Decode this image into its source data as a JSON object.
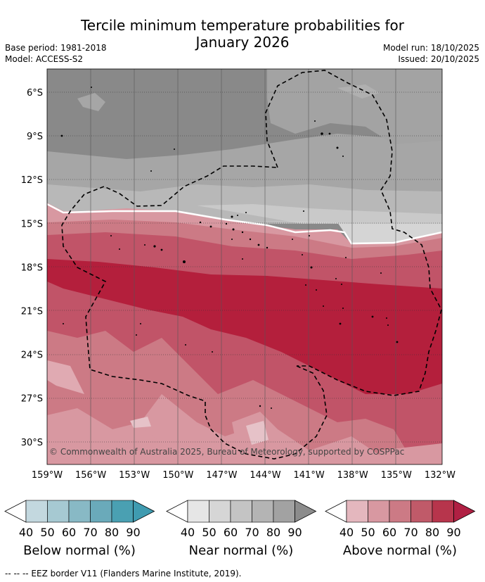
{
  "header": {
    "title_line1": "Tercile minimum temperature probabilities for",
    "title_line2": "January 2026",
    "base_period": "Base period: 1981-2018",
    "model": "Model: ACCESS-S2",
    "model_run": "Model run: 18/10/2025",
    "issued": "Issued: 20/10/2025"
  },
  "map": {
    "copyright": "© Commonwealth of Australia 2025, Bureau of Meteorology, supported by COSPPac",
    "lat_labels": [
      "6°S",
      "9°S",
      "12°S",
      "15°S",
      "18°S",
      "21°S",
      "24°S",
      "27°S",
      "30°S"
    ],
    "lon_labels": [
      "159°W",
      "156°W",
      "153°W",
      "150°W",
      "147°W",
      "144°W",
      "141°W",
      "138°W",
      "135°W",
      "132°W"
    ]
  },
  "legend": {
    "below": {
      "title": "Below normal (%)",
      "ticks": [
        "40",
        "50",
        "60",
        "70",
        "80",
        "90"
      ],
      "colors": [
        "#c3d8df",
        "#a6c9d2",
        "#88b9c5",
        "#6aaaba",
        "#4aa0b2"
      ]
    },
    "near": {
      "title": "Near normal (%)",
      "ticks": [
        "40",
        "50",
        "60",
        "70",
        "80",
        "90"
      ],
      "colors": [
        "#e6e6e6",
        "#d6d6d6",
        "#c4c4c4",
        "#b4b4b4",
        "#a2a2a2"
      ]
    },
    "above": {
      "title": "Above normal (%)",
      "ticks": [
        "40",
        "50",
        "60",
        "70",
        "80",
        "90"
      ],
      "colors": [
        "#e4b7be",
        "#d898a1",
        "#cc7a85",
        "#c05a69",
        "#b7354c"
      ]
    }
  },
  "footnote": "--  --  -- EEZ border V11 (Flanders Marine Institute, 2019).",
  "colors": {
    "near_70": "#c4c4c4",
    "near_80": "#a6a6a6",
    "near_90": "#898989",
    "above_60": "#d898a1",
    "above_70": "#cc7a85",
    "above_80": "#c15468",
    "above_90": "#b41f3c"
  }
}
